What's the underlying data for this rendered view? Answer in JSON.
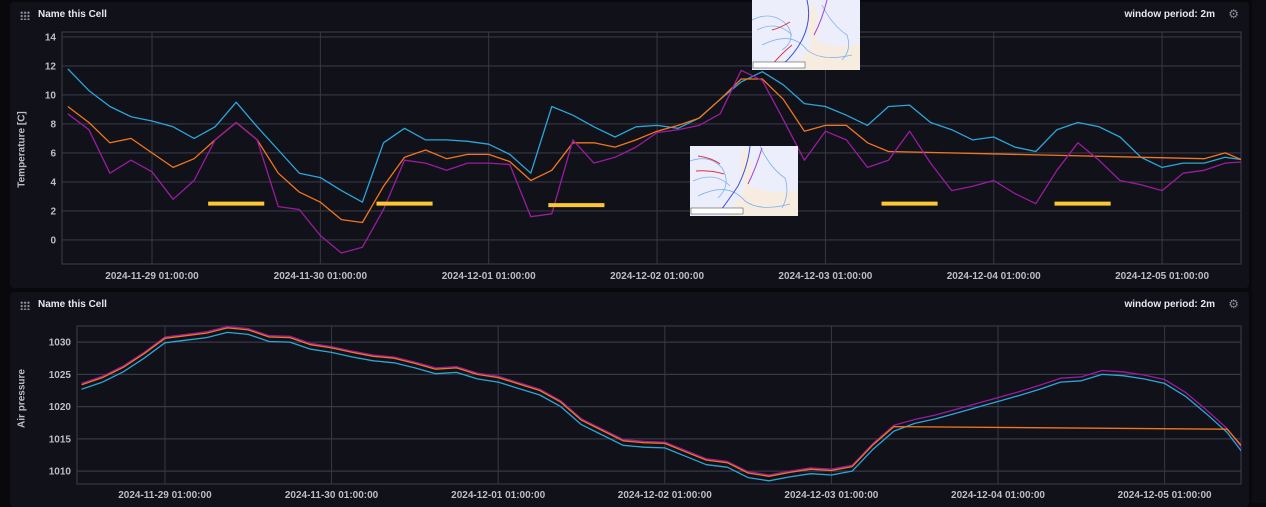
{
  "panels": [
    {
      "title": "Name this Cell",
      "window_period": "window period: 2m",
      "y_label": "Temperature [C]"
    },
    {
      "title": "Name this Cell",
      "window_period": "window period: 2m",
      "y_label": "Air pressure"
    }
  ],
  "colors": {
    "cyan": "#2ba6d9",
    "orange": "#f0761e",
    "purple": "#9a1c9f",
    "annotation": "#fcc832",
    "grid": "#383846"
  },
  "icons": {
    "drag": "drag-grid-icon",
    "settings": "gear-icon"
  },
  "images": [
    {
      "type": "weather-map"
    },
    {
      "type": "weather-map"
    }
  ],
  "chart_data": [
    {
      "type": "line",
      "ylabel": "Temperature [C]",
      "ylim": [
        -1.66,
        14.34
      ],
      "yticks": [
        0,
        2,
        4,
        6,
        8,
        10,
        12,
        14
      ],
      "xlim": [
        "2024-11-28 12:10",
        "2024-12-05 12:15"
      ],
      "xticks": [
        "2024-11-29 01:00:00",
        "2024-11-30 01:00:00",
        "2024-12-01 01:00:00",
        "2024-12-02 01:00:00",
        "2024-12-03 01:00:00",
        "2024-12-04 01:00:00",
        "2024-12-05 01:00:00"
      ],
      "grid": true,
      "x": [
        "2024-11-28 13:00",
        "2024-11-28 16:00",
        "2024-11-28 19:00",
        "2024-11-28 22:00",
        "2024-11-29 01:00",
        "2024-11-29 04:00",
        "2024-11-29 07:00",
        "2024-11-29 10:00",
        "2024-11-29 13:00",
        "2024-11-29 16:00",
        "2024-11-29 19:00",
        "2024-11-29 22:00",
        "2024-11-30 01:00",
        "2024-11-30 04:00",
        "2024-11-30 07:00",
        "2024-11-30 10:00",
        "2024-11-30 13:00",
        "2024-11-30 16:00",
        "2024-11-30 19:00",
        "2024-11-30 22:00",
        "2024-12-01 01:00",
        "2024-12-01 04:00",
        "2024-12-01 07:00",
        "2024-12-01 10:00",
        "2024-12-01 13:00",
        "2024-12-01 16:00",
        "2024-12-01 19:00",
        "2024-12-01 22:00",
        "2024-12-02 01:00",
        "2024-12-02 04:00",
        "2024-12-02 07:00",
        "2024-12-02 10:00",
        "2024-12-02 13:00",
        "2024-12-02 16:00",
        "2024-12-02 19:00",
        "2024-12-02 22:00",
        "2024-12-03 01:00",
        "2024-12-03 04:00",
        "2024-12-03 07:00",
        "2024-12-03 10:00",
        "2024-12-03 13:00",
        "2024-12-03 16:00",
        "2024-12-03 19:00",
        "2024-12-03 22:00",
        "2024-12-04 01:00",
        "2024-12-04 04:00",
        "2024-12-04 07:00",
        "2024-12-04 10:00",
        "2024-12-04 13:00",
        "2024-12-04 16:00",
        "2024-12-04 19:00",
        "2024-12-04 22:00",
        "2024-12-05 01:00",
        "2024-12-05 04:00",
        "2024-12-05 07:00",
        "2024-12-05 10:00",
        "2024-12-05 13:00"
      ],
      "series": [
        {
          "color": "#2ba6d9",
          "values": [
            11.8,
            10.3,
            9.2,
            8.5,
            8.2,
            7.8,
            7.0,
            7.8,
            9.5,
            7.8,
            6.2,
            4.6,
            4.3,
            3.4,
            2.6,
            6.7,
            7.7,
            6.9,
            6.9,
            6.8,
            6.6,
            5.9,
            4.6,
            9.2,
            8.6,
            7.8,
            7.1,
            7.8,
            7.9,
            7.7,
            8.4,
            9.7,
            10.9,
            11.6,
            10.7,
            9.4,
            9.2,
            8.6,
            7.9,
            9.2,
            9.3,
            8.1,
            7.6,
            6.9,
            7.1,
            6.4,
            6.1,
            7.6,
            8.1,
            7.8,
            7.1,
            5.7,
            5.0,
            5.3,
            5.3,
            5.7,
            5.5
          ]
        },
        {
          "color": "#f0761e",
          "values": [
            9.2,
            8.1,
            6.7,
            7.0,
            6.0,
            5.0,
            5.6,
            6.9,
            8.1,
            6.9,
            4.6,
            3.3,
            2.6,
            1.4,
            1.2,
            3.7,
            5.7,
            6.2,
            5.6,
            5.9,
            5.9,
            5.4,
            4.1,
            4.8,
            6.7,
            6.7,
            6.4,
            6.9,
            7.5,
            7.9,
            8.4,
            9.7,
            11.1,
            11.1,
            9.7,
            7.5,
            7.9,
            7.9,
            6.7,
            6.1,
            null,
            null,
            null,
            null,
            null,
            null,
            null,
            null,
            null,
            null,
            null,
            null,
            null,
            null,
            5.6,
            6.0,
            5.4
          ]
        },
        {
          "color": "#9a1c9f",
          "values": [
            8.7,
            7.6,
            4.6,
            5.5,
            4.7,
            2.8,
            4.1,
            6.9,
            8.1,
            6.9,
            2.3,
            2.1,
            0.3,
            -0.9,
            -0.5,
            2.1,
            5.5,
            5.3,
            4.8,
            5.3,
            5.3,
            5.2,
            1.6,
            1.8,
            6.9,
            5.3,
            5.7,
            6.4,
            7.4,
            7.6,
            7.9,
            8.7,
            11.7,
            11.0,
            8.3,
            5.5,
            7.5,
            6.9,
            5.0,
            5.5,
            7.5,
            5.3,
            3.4,
            3.7,
            4.1,
            3.2,
            2.5,
            4.8,
            6.7,
            5.5,
            4.1,
            3.8,
            3.4,
            4.6,
            4.8,
            5.3,
            5.4
          ]
        }
      ],
      "annotations": [
        {
          "start": "2024-11-29 09:00",
          "end": "2024-11-29 17:00",
          "value": 2.5
        },
        {
          "start": "2024-11-30 09:00",
          "end": "2024-11-30 17:00",
          "value": 2.5
        },
        {
          "start": "2024-12-01 09:30",
          "end": "2024-12-01 17:30",
          "value": 2.4
        },
        {
          "start": "2024-12-03 09:00",
          "end": "2024-12-03 17:00",
          "value": 2.5
        },
        {
          "start": "2024-12-04 09:40",
          "end": "2024-12-04 17:40",
          "value": 2.5
        }
      ]
    },
    {
      "type": "line",
      "ylabel": "Air pressure",
      "ylim": [
        1008.0,
        1032.5
      ],
      "yticks": [
        1010,
        1015,
        1020,
        1025,
        1030
      ],
      "xlim": [
        "2024-11-28 12:20",
        "2024-12-05 12:00"
      ],
      "xticks": [
        "2024-11-29 01:00:00",
        "2024-11-30 01:00:00",
        "2024-12-01 01:00:00",
        "2024-12-02 01:00:00",
        "2024-12-03 01:00:00",
        "2024-12-04 01:00:00",
        "2024-12-05 01:00:00"
      ],
      "grid": true,
      "x_same_as_first": true,
      "series": [
        {
          "color": "#2ba6d9",
          "values": [
            1022.7,
            1023.8,
            1025.4,
            1027.5,
            1029.9,
            1030.3,
            1030.7,
            1031.5,
            1031.2,
            1030.1,
            1030.0,
            1028.9,
            1028.4,
            1027.7,
            1027.1,
            1026.8,
            1026.0,
            1025.1,
            1025.3,
            1024.3,
            1023.8,
            1022.8,
            1021.8,
            1020.0,
            1017.2,
            1015.6,
            1014.0,
            1013.7,
            1013.6,
            1012.3,
            1011.0,
            1010.6,
            1009.0,
            1008.5,
            1009.1,
            1009.6,
            1009.4,
            1010.0,
            1013.4,
            1016.2,
            1017.4,
            1018.1,
            1019.0,
            1019.9,
            1020.8,
            1021.7,
            1022.7,
            1023.8,
            1024.0,
            1025.0,
            1024.8,
            1024.3,
            1023.6,
            1021.6,
            1018.9,
            1016.0,
            1011.8
          ]
        },
        {
          "color": "#9a1c9f",
          "values": [
            1023.6,
            1024.7,
            1026.3,
            1028.4,
            1030.8,
            1031.2,
            1031.6,
            1032.4,
            1032.1,
            1031.0,
            1030.9,
            1029.8,
            1029.3,
            1028.6,
            1028.0,
            1027.7,
            1026.9,
            1026.0,
            1026.2,
            1025.2,
            1024.7,
            1023.7,
            1022.7,
            1020.9,
            1018.1,
            1016.5,
            1014.9,
            1014.6,
            1014.5,
            1013.2,
            1011.9,
            1011.5,
            1009.9,
            1009.4,
            1010.0,
            1010.5,
            1010.3,
            1010.9,
            1014.3,
            1017.1,
            1018.0,
            1018.7,
            1019.6,
            1020.5,
            1021.4,
            1022.3,
            1023.3,
            1024.4,
            1024.6,
            1025.6,
            1025.4,
            1024.9,
            1024.2,
            1022.2,
            1019.5,
            1016.6,
            1012.4
          ]
        },
        {
          "color": "#f0761e",
          "values": [
            1023.4,
            1024.5,
            1026.1,
            1028.2,
            1030.6,
            1031.0,
            1031.4,
            1032.2,
            1031.9,
            1030.8,
            1030.7,
            1029.6,
            1029.1,
            1028.4,
            1027.8,
            1027.5,
            1026.7,
            1025.8,
            1026.0,
            1025.0,
            1024.5,
            1023.5,
            1022.5,
            1020.7,
            1017.9,
            1016.3,
            1014.7,
            1014.4,
            1014.3,
            1013.0,
            1011.7,
            1011.3,
            1009.7,
            1009.2,
            1009.8,
            1010.3,
            1010.1,
            1010.7,
            1014.1,
            1016.9,
            null,
            null,
            null,
            null,
            null,
            null,
            null,
            null,
            null,
            null,
            null,
            null,
            null,
            null,
            null,
            1016.5,
            1012.8
          ]
        }
      ]
    }
  ]
}
